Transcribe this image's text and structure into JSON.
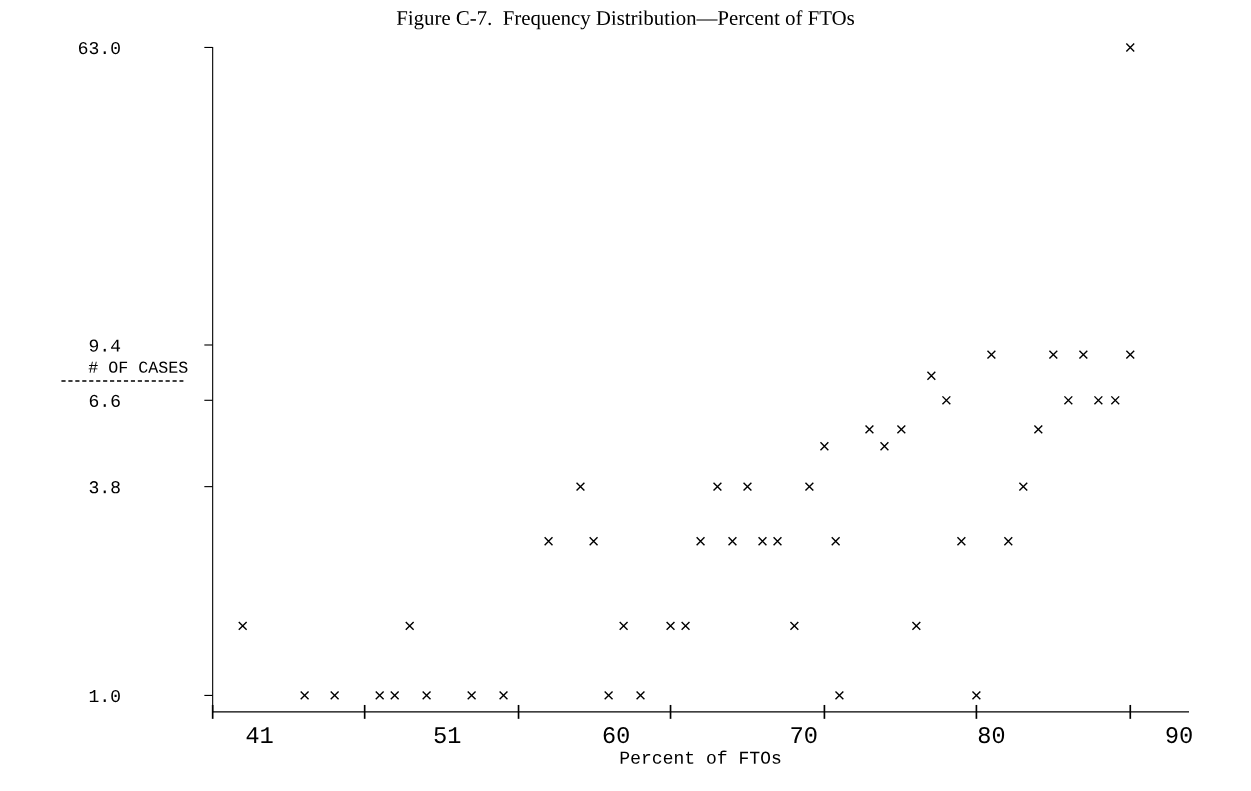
{
  "chart_data": {
    "type": "scatter",
    "title": "Figure C-7.  Frequency Distribution—Percent of FTOs",
    "xlabel": "Percent of FTOs",
    "ylabel": "# OF CASES",
    "x": [
      43.4,
      45.0,
      47.4,
      48.2,
      49.9,
      52.3,
      54.0,
      59.6,
      61.3,
      71.9,
      79.2,
      40.1,
      49.0,
      60.4,
      62.9,
      63.7,
      69.5,
      76.0,
      56.4,
      58.8,
      64.5,
      66.2,
      67.8,
      68.6,
      71.7,
      78.4,
      80.9,
      58.1,
      65.4,
      67.0,
      70.3,
      81.7,
      71.1,
      74.3,
      73.5,
      75.2,
      82.5,
      77.6,
      84.1,
      85.7,
      86.6,
      76.8,
      80.0,
      83.3,
      84.9,
      87.4,
      87.4
    ],
    "values": [
      1.0,
      1.0,
      1.0,
      1.0,
      1.0,
      1.0,
      1.0,
      1.0,
      1.0,
      1.0,
      1.0,
      1.56,
      1.56,
      1.56,
      1.56,
      1.56,
      1.56,
      1.56,
      2.68,
      2.68,
      2.68,
      2.68,
      2.68,
      2.68,
      2.68,
      2.68,
      2.68,
      3.8,
      3.8,
      3.8,
      3.8,
      3.8,
      4.92,
      4.92,
      5.48,
      5.48,
      5.48,
      6.6,
      6.6,
      6.6,
      6.6,
      7.72,
      8.84,
      8.84,
      8.84,
      8.84,
      63.0
    ],
    "color": "#000000",
    "marker": "cross",
    "grid": false,
    "log": "y",
    "xlim": [
      38.5,
      90.5
    ],
    "xticks": [
      41,
      51,
      60,
      70,
      80,
      90,
      {
        "value": 38.5,
        "label": null
      },
      {
        "value": 46.6,
        "label": null
      },
      {
        "value": 54.8,
        "label": null
      },
      {
        "value": 62.9,
        "label": null
      },
      {
        "value": 71.1,
        "label": null
      },
      {
        "value": 79.2,
        "label": null
      },
      {
        "value": 87.4,
        "label": null
      }
    ],
    "ylim": [
      0.9,
      63.0
    ],
    "yticks": [
      {
        "value": 1.0,
        "label": "1.0"
      },
      {
        "value": 3.8,
        "label": "3.8"
      },
      {
        "value": 6.6,
        "label": "6.6"
      },
      {
        "value": 9.4,
        "label": "9.4"
      },
      {
        "value": 63.0,
        "label": "63.0"
      }
    ]
  }
}
